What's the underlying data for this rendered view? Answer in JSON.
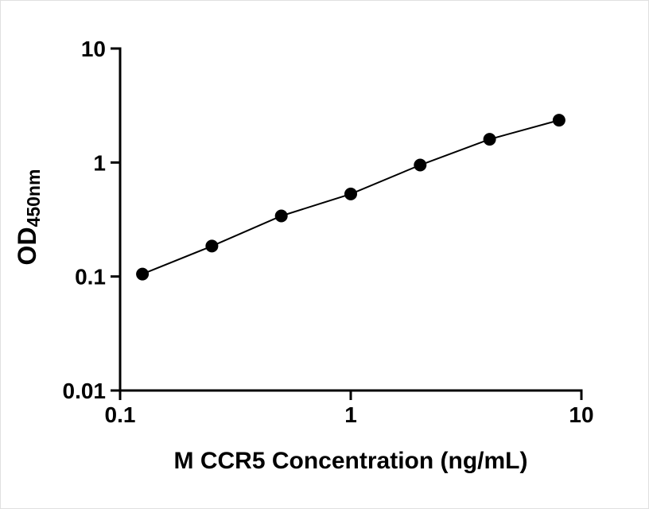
{
  "chart_data": {
    "type": "scatter",
    "title": "",
    "xlabel": "M CCR5 Concentration (ng/mL)",
    "ylabel_main": "OD",
    "ylabel_sub": "450nm",
    "x_scale": "log",
    "y_scale": "log",
    "xlim": [
      0.1,
      10
    ],
    "ylim": [
      0.01,
      10
    ],
    "grid": false,
    "legend": false,
    "x_ticks": [
      {
        "value": 0.1,
        "label": "0.1"
      },
      {
        "value": 1,
        "label": "1"
      },
      {
        "value": 10,
        "label": "10"
      }
    ],
    "y_ticks": [
      {
        "value": 0.01,
        "label": "0.01"
      },
      {
        "value": 0.1,
        "label": "0.1"
      },
      {
        "value": 1,
        "label": "1"
      },
      {
        "value": 10,
        "label": "10"
      }
    ],
    "series": [
      {
        "marker": "circle",
        "line": true,
        "x": [
          0.125,
          0.25,
          0.5,
          1,
          2,
          4,
          8
        ],
        "y": [
          0.105,
          0.185,
          0.34,
          0.53,
          0.95,
          1.6,
          2.35
        ]
      }
    ]
  },
  "style": {
    "axis_color": "#000000",
    "marker_color": "#000000",
    "line_color": "#000000",
    "background": "#ffffff"
  }
}
